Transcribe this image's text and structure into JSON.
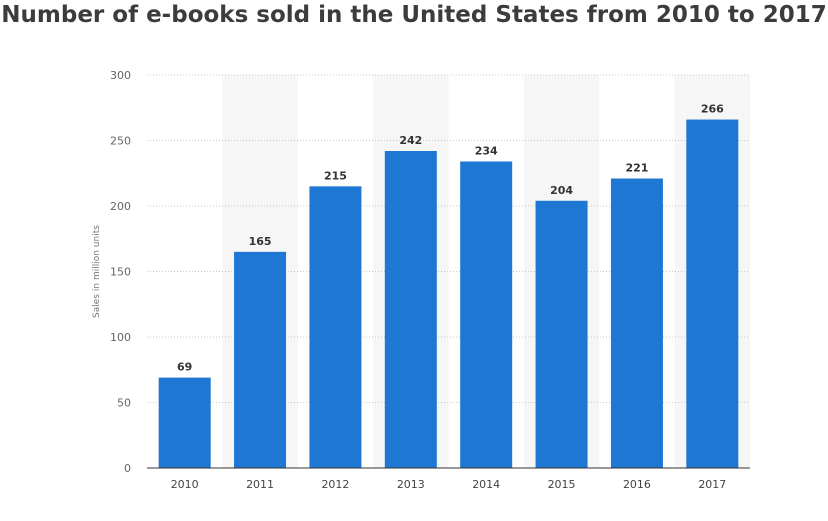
{
  "chart_data": {
    "type": "bar",
    "title": "Number of e-books sold in the United States from 2010 to 2017",
    "xlabel": "",
    "ylabel": "Sales in million units",
    "categories": [
      "2010",
      "2011",
      "2012",
      "2013",
      "2014",
      "2015",
      "2016",
      "2017"
    ],
    "values": [
      69,
      165,
      215,
      242,
      234,
      204,
      221,
      266
    ],
    "ylim": [
      0,
      300
    ],
    "yticks": [
      0,
      50,
      100,
      150,
      200,
      250,
      300
    ],
    "grid": true,
    "legend": "none",
    "bar_color": "#1f77d4",
    "band_color": "#f6f6f6"
  }
}
